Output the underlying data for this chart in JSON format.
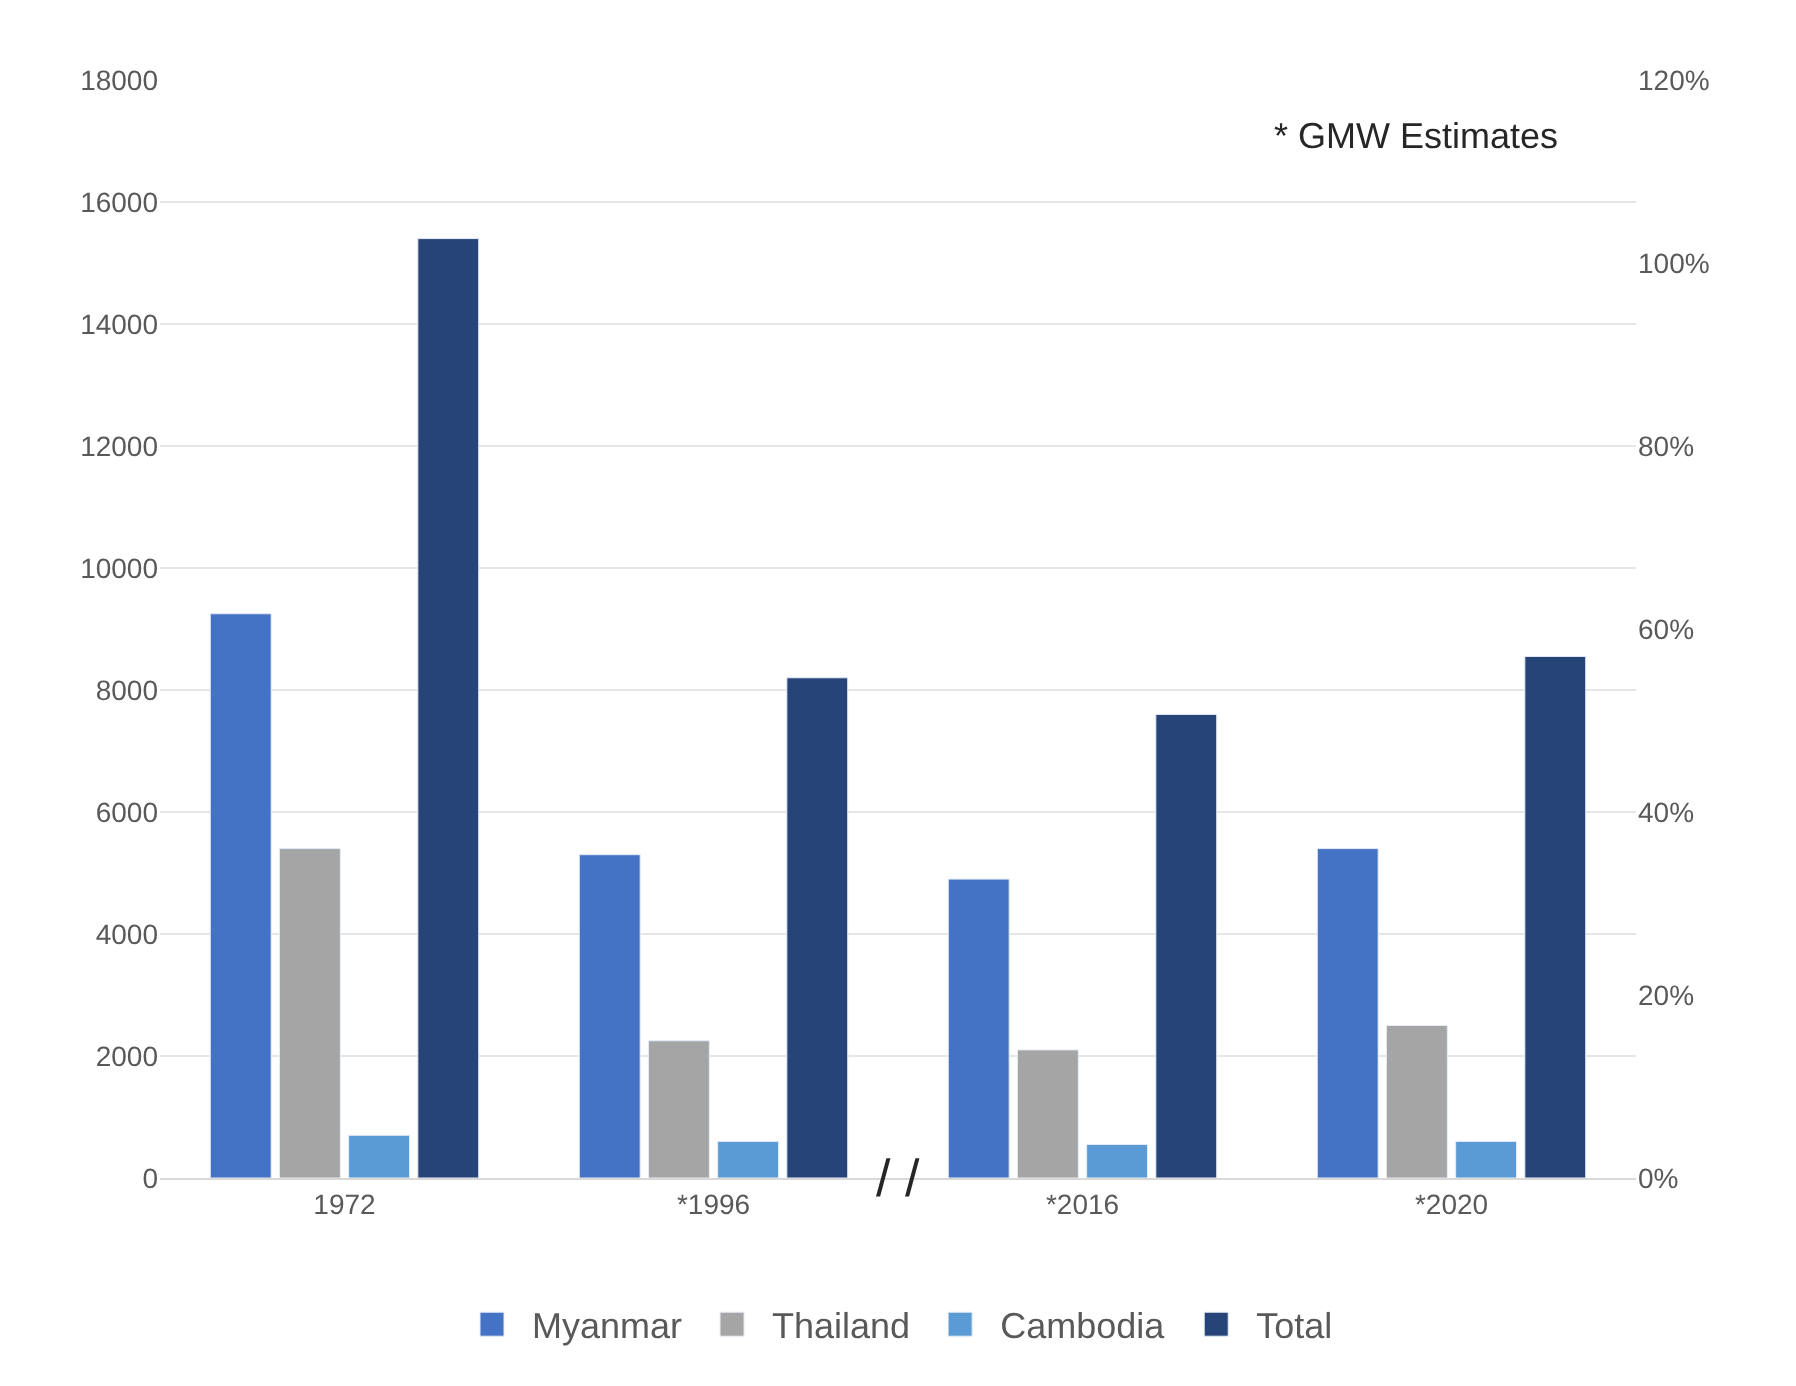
{
  "chart_data": {
    "type": "bar",
    "categories": [
      "1972",
      "*1996",
      "*2016",
      "*2020"
    ],
    "series": [
      {
        "name": "Myanmar",
        "color": "#4472c4",
        "values": [
          9250,
          5300,
          4900,
          5400
        ]
      },
      {
        "name": "Thailand",
        "color": "#a5a5a5",
        "values": [
          5400,
          2250,
          2100,
          2500
        ]
      },
      {
        "name": "Cambodia",
        "color": "#5b9bd5",
        "values": [
          700,
          600,
          550,
          600
        ]
      },
      {
        "name": "Total",
        "color": "#264478",
        "values": [
          15400,
          8200,
          7600,
          8550
        ]
      }
    ],
    "ylim": [
      0,
      18000
    ],
    "yticks": [
      0,
      2000,
      4000,
      6000,
      8000,
      10000,
      12000,
      14000,
      16000,
      18000
    ],
    "y2lim": [
      0,
      120
    ],
    "y2ticks": [
      {
        "value": 0,
        "label": "0%"
      },
      {
        "value": 20,
        "label": "20%"
      },
      {
        "value": 40,
        "label": "40%"
      },
      {
        "value": 60,
        "label": "60%"
      },
      {
        "value": 80,
        "label": "80%"
      },
      {
        "value": 100,
        "label": "100%"
      },
      {
        "value": 120,
        "label": "120%"
      }
    ],
    "annotations": [
      "* GMW Estimates",
      "/ /"
    ],
    "grid": "y",
    "legend": "bottom"
  }
}
